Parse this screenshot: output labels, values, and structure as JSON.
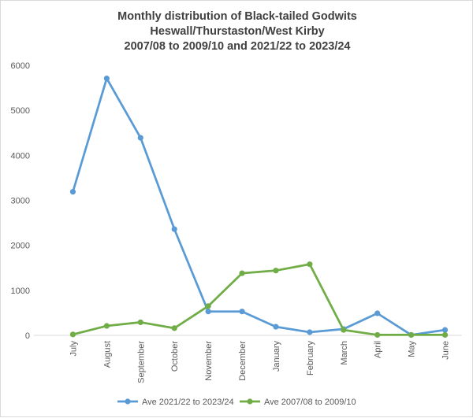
{
  "chart_data": {
    "type": "line",
    "title_lines": [
      "Monthly distribution of Black-tailed Godwits",
      "Heswall/Thurstaston/West Kirby",
      "2007/08 to 2009/10 and 2021/22 to 2023/24"
    ],
    "xlabel": "",
    "ylabel": "",
    "categories": [
      "July",
      "August",
      "September",
      "October",
      "November",
      "December",
      "January",
      "February",
      "March",
      "April",
      "May",
      "June"
    ],
    "ylim": [
      0,
      6000
    ],
    "yticks": [
      0,
      1000,
      2000,
      3000,
      4000,
      5000,
      6000
    ],
    "grid": false,
    "legend_position": "bottom",
    "series": [
      {
        "name": "Ave 2021/22 to 2023/24",
        "color": "#5b9bd5",
        "values": [
          3190,
          5710,
          4390,
          2360,
          530,
          530,
          190,
          70,
          140,
          490,
          10,
          120
        ]
      },
      {
        "name": "Ave 2007/08 to 2009/10",
        "color": "#70ad47",
        "values": [
          20,
          210,
          290,
          160,
          650,
          1380,
          1440,
          1580,
          120,
          10,
          10,
          10
        ]
      }
    ]
  }
}
